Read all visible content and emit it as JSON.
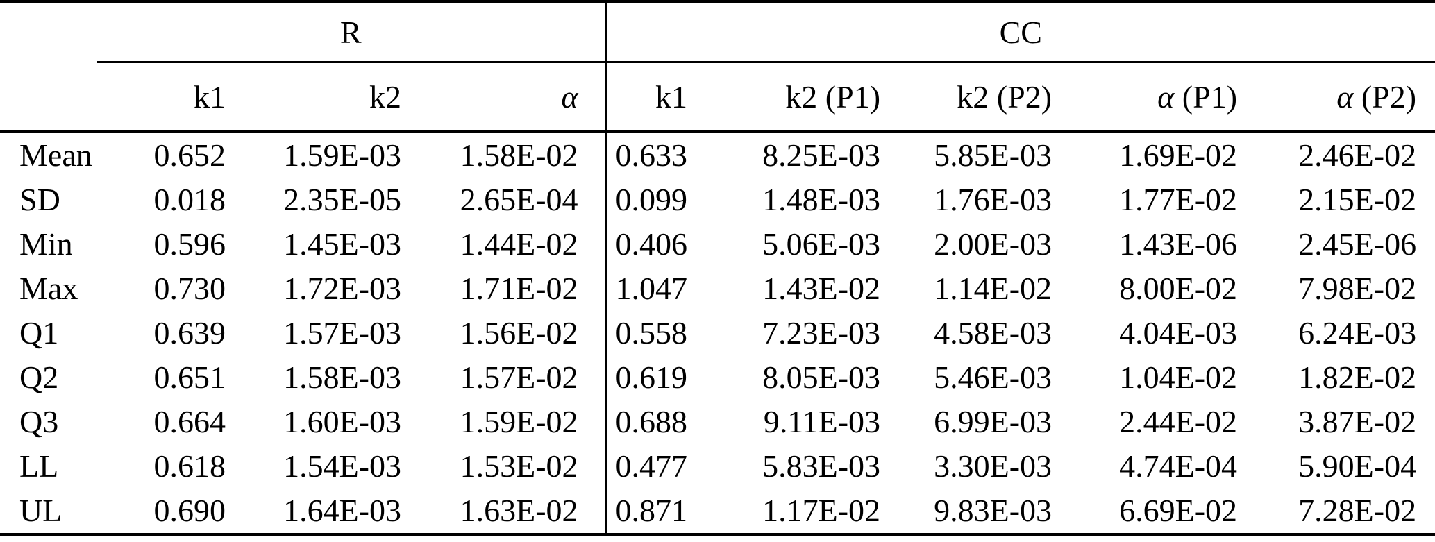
{
  "table": {
    "colors": {
      "text": "#000000",
      "background": "#ffffff",
      "rule": "#000000"
    },
    "group_headers": [
      {
        "label": "",
        "span": 1
      },
      {
        "label": "R",
        "span": 3
      },
      {
        "label": "CC",
        "span": 5
      }
    ],
    "column_headers": [
      {
        "segments": [
          {
            "text": "",
            "italic": false
          }
        ]
      },
      {
        "segments": [
          {
            "text": "k1",
            "italic": false
          }
        ]
      },
      {
        "segments": [
          {
            "text": "k2",
            "italic": false
          }
        ]
      },
      {
        "segments": [
          {
            "text": "α",
            "italic": true
          }
        ]
      },
      {
        "segments": [
          {
            "text": "k1",
            "italic": false
          }
        ]
      },
      {
        "segments": [
          {
            "text": "k2 (P1)",
            "italic": false
          }
        ]
      },
      {
        "segments": [
          {
            "text": "k2 (P2)",
            "italic": false
          }
        ]
      },
      {
        "segments": [
          {
            "text": "α",
            "italic": true
          },
          {
            "text": " (P1)",
            "italic": false
          }
        ]
      },
      {
        "segments": [
          {
            "text": "α",
            "italic": true
          },
          {
            "text": " (P2)",
            "italic": false
          }
        ]
      }
    ],
    "rows": [
      {
        "label": "Mean",
        "values": [
          "0.652",
          "1.59E-03",
          "1.58E-02",
          "0.633",
          "8.25E-03",
          "5.85E-03",
          "1.69E-02",
          "2.46E-02"
        ]
      },
      {
        "label": "SD",
        "values": [
          "0.018",
          "2.35E-05",
          "2.65E-04",
          "0.099",
          "1.48E-03",
          "1.76E-03",
          "1.77E-02",
          "2.15E-02"
        ]
      },
      {
        "label": "Min",
        "values": [
          "0.596",
          "1.45E-03",
          "1.44E-02",
          "0.406",
          "5.06E-03",
          "2.00E-03",
          "1.43E-06",
          "2.45E-06"
        ]
      },
      {
        "label": "Max",
        "values": [
          "0.730",
          "1.72E-03",
          "1.71E-02",
          "1.047",
          "1.43E-02",
          "1.14E-02",
          "8.00E-02",
          "7.98E-02"
        ]
      },
      {
        "label": "Q1",
        "values": [
          "0.639",
          "1.57E-03",
          "1.56E-02",
          "0.558",
          "7.23E-03",
          "4.58E-03",
          "4.04E-03",
          "6.24E-03"
        ]
      },
      {
        "label": "Q2",
        "values": [
          "0.651",
          "1.58E-03",
          "1.57E-02",
          "0.619",
          "8.05E-03",
          "5.46E-03",
          "1.04E-02",
          "1.82E-02"
        ]
      },
      {
        "label": "Q3",
        "values": [
          "0.664",
          "1.60E-03",
          "1.59E-02",
          "0.688",
          "9.11E-03",
          "6.99E-03",
          "2.44E-02",
          "3.87E-02"
        ]
      },
      {
        "label": "LL",
        "values": [
          "0.618",
          "1.54E-03",
          "1.53E-02",
          "0.477",
          "5.83E-03",
          "3.30E-03",
          "4.74E-04",
          "5.90E-04"
        ]
      },
      {
        "label": "UL",
        "values": [
          "0.690",
          "1.64E-03",
          "1.63E-02",
          "0.871",
          "1.17E-02",
          "9.83E-03",
          "6.69E-02",
          "7.28E-02"
        ]
      }
    ]
  }
}
